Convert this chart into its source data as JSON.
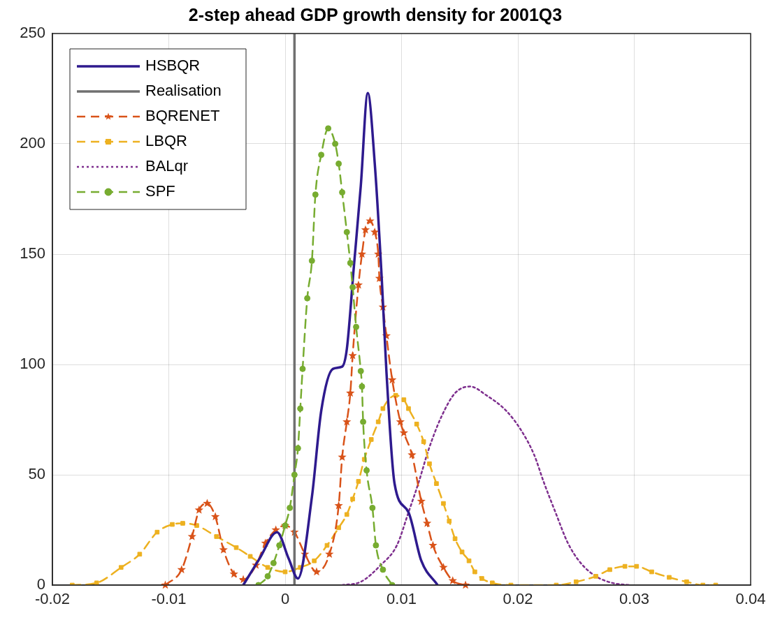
{
  "chart_data": {
    "type": "line",
    "title": "2-step ahead GDP growth density for 2001Q3",
    "xlim": [
      -0.02,
      0.04
    ],
    "xticks": [
      -0.02,
      -0.01,
      0,
      0.01,
      0.02,
      0.03,
      0.04
    ],
    "ylim": [
      0,
      250
    ],
    "yticks": [
      0,
      50,
      100,
      150,
      200,
      250
    ],
    "grid": true,
    "legend": "top left",
    "series": [
      {
        "name": "HSBQR",
        "color": "#2e1a8e",
        "marker": "none",
        "line_style": "solid",
        "x": [
          -0.0036,
          -0.0022,
          -0.0007,
          0.0003,
          0.0011,
          0.0023,
          0.0031,
          0.0041,
          0.0049,
          0.0053,
          0.0059,
          0.0065,
          0.0071,
          0.0077,
          0.0083,
          0.0087,
          0.0094,
          0.0106,
          0.0117,
          0.0131
        ],
        "values": [
          0,
          12,
          24,
          12,
          3,
          40,
          79,
          98,
          99,
          107,
          144,
          181,
          223,
          191,
          139,
          97,
          46,
          33,
          11,
          0
        ]
      },
      {
        "name": "Realisation",
        "color": "#707070",
        "marker": "none",
        "line_style": "solid",
        "x": [
          0.0008,
          0.0008
        ],
        "values": [
          0,
          250
        ]
      },
      {
        "name": "BQRENET",
        "color": "#d95319",
        "marker": "star",
        "line_style": "dashed",
        "x": [
          -0.0103,
          -0.0089,
          -0.008,
          -0.0074,
          -0.0067,
          -0.006,
          -0.0053,
          -0.0044,
          -0.0036,
          -0.0025,
          -0.0017,
          -0.0008,
          0,
          0.0008,
          0.0017,
          0.0027,
          0.0038,
          0.0046,
          0.0049,
          0.0053,
          0.0056,
          0.0058,
          0.0063,
          0.0066,
          0.0069,
          0.0073,
          0.0077,
          0.008,
          0.0081,
          0.0084,
          0.0087,
          0.0092,
          0.0099,
          0.0102,
          0.0109,
          0.0117,
          0.0122,
          0.0127,
          0.0136,
          0.0144,
          0.0155
        ],
        "values": [
          0,
          7,
          22,
          34,
          37,
          31,
          16,
          5,
          2.5,
          9,
          19,
          25,
          27,
          24,
          14,
          6,
          14,
          36,
          58,
          74,
          87,
          104,
          136,
          150,
          161,
          165,
          160,
          150,
          139,
          126,
          113,
          93,
          74,
          69,
          59,
          38,
          28,
          18,
          8,
          2,
          0
        ]
      },
      {
        "name": "LBQR",
        "color": "#edb120",
        "marker": "square",
        "line_style": "dashed",
        "x": [
          -0.0183,
          -0.0162,
          -0.0141,
          -0.0125,
          -0.011,
          -0.0097,
          -0.0088,
          -0.0076,
          -0.0059,
          -0.0042,
          -0.003,
          -0.0015,
          0,
          0.0013,
          0.0025,
          0.0036,
          0.0046,
          0.0053,
          0.0058,
          0.0063,
          0.0068,
          0.0074,
          0.008,
          0.0084,
          0.0095,
          0.0102,
          0.0106,
          0.0113,
          0.0119,
          0.0124,
          0.013,
          0.0136,
          0.0141,
          0.0146,
          0.0152,
          0.0158,
          0.0163,
          0.0169,
          0.0178,
          0.0194,
          0.0233,
          0.025,
          0.0267,
          0.0279,
          0.0292,
          0.0302,
          0.0315,
          0.033,
          0.0345,
          0.0359,
          0.037
        ],
        "values": [
          0,
          1,
          8,
          14,
          24,
          27.5,
          28,
          27,
          22,
          17,
          13,
          8,
          6,
          8,
          11,
          18,
          26,
          32,
          39,
          47,
          57,
          66,
          74,
          80,
          86,
          84,
          80,
          73,
          65,
          55,
          46,
          37,
          29,
          21,
          15,
          11,
          6,
          3,
          1,
          0,
          0,
          1.5,
          4,
          7,
          8.5,
          8.5,
          6,
          3.5,
          1.5,
          0,
          0
        ]
      },
      {
        "name": "BALqr",
        "color": "#7e2f8e",
        "marker": "none",
        "line_style": "dotted",
        "x": [
          0.0049,
          0.0065,
          0.0082,
          0.0096,
          0.0106,
          0.0115,
          0.0123,
          0.0134,
          0.0146,
          0.0159,
          0.0173,
          0.019,
          0.0203,
          0.0214,
          0.0222,
          0.0233,
          0.0243,
          0.0254,
          0.0267,
          0.0281,
          0.0296
        ],
        "values": [
          0,
          1.5,
          9,
          18,
          33,
          47,
          61,
          76,
          87,
          90,
          86,
          79,
          70,
          59,
          47,
          32,
          19,
          10,
          4,
          1,
          0
        ]
      },
      {
        "name": "SPF",
        "color": "#77ac30",
        "marker": "circle",
        "line_style": "dashed",
        "x": [
          -0.0023,
          -0.0015,
          -0.001,
          -0.0005,
          0,
          0.0004,
          0.0008,
          0.0011,
          0.0013,
          0.0015,
          0.0019,
          0.0023,
          0.0026,
          0.0031,
          0.0037,
          0.0043,
          0.0046,
          0.0049,
          0.0053,
          0.0056,
          0.0058,
          0.0061,
          0.0065,
          0.0066,
          0.0067,
          0.007,
          0.0075,
          0.0078,
          0.0084,
          0.0092
        ],
        "values": [
          0,
          4,
          10,
          18,
          27,
          35,
          50,
          62,
          80,
          98,
          130,
          147,
          177,
          195,
          207,
          200,
          191,
          178,
          160,
          146,
          135,
          117,
          97,
          90,
          74,
          52,
          35,
          18,
          7,
          0
        ]
      }
    ]
  }
}
